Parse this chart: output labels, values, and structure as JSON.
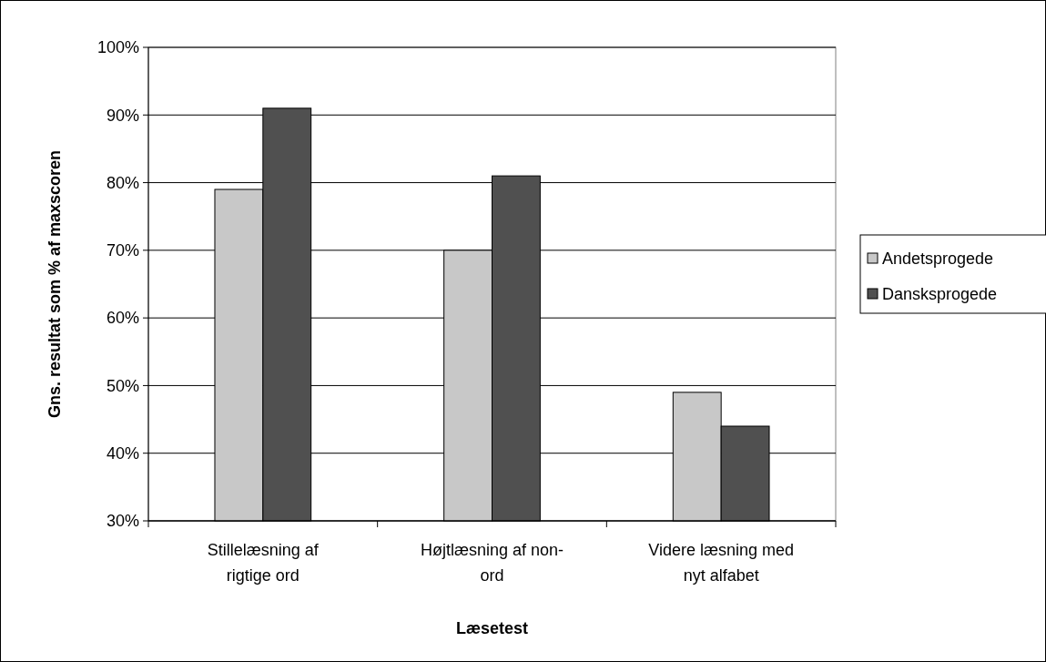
{
  "chart_data": {
    "type": "bar",
    "xlabel": "Læsetest",
    "ylabel": "Gns. resultat som % af maxscoren",
    "categories": [
      "Stillelæsning af rigtige ord",
      "Højtlæsning af non-ord",
      "Videre læsning med nyt alfabet"
    ],
    "series": [
      {
        "name": "Andetsprogede",
        "color": "#c8c8c8",
        "values": [
          79,
          70,
          49
        ]
      },
      {
        "name": "Dansksprogede",
        "color": "#505050",
        "values": [
          91,
          81,
          44
        ]
      }
    ],
    "ylim": [
      30,
      100
    ],
    "yticks": [
      {
        "value": 30,
        "label": "30%"
      },
      {
        "value": 40,
        "label": "40%"
      },
      {
        "value": 50,
        "label": "50%"
      },
      {
        "value": 60,
        "label": "60%"
      },
      {
        "value": 70,
        "label": "70%"
      },
      {
        "value": 80,
        "label": "80%"
      },
      {
        "value": 90,
        "label": "90%"
      },
      {
        "value": 100,
        "label": "100%"
      }
    ],
    "grid": "y",
    "legend": "right"
  }
}
